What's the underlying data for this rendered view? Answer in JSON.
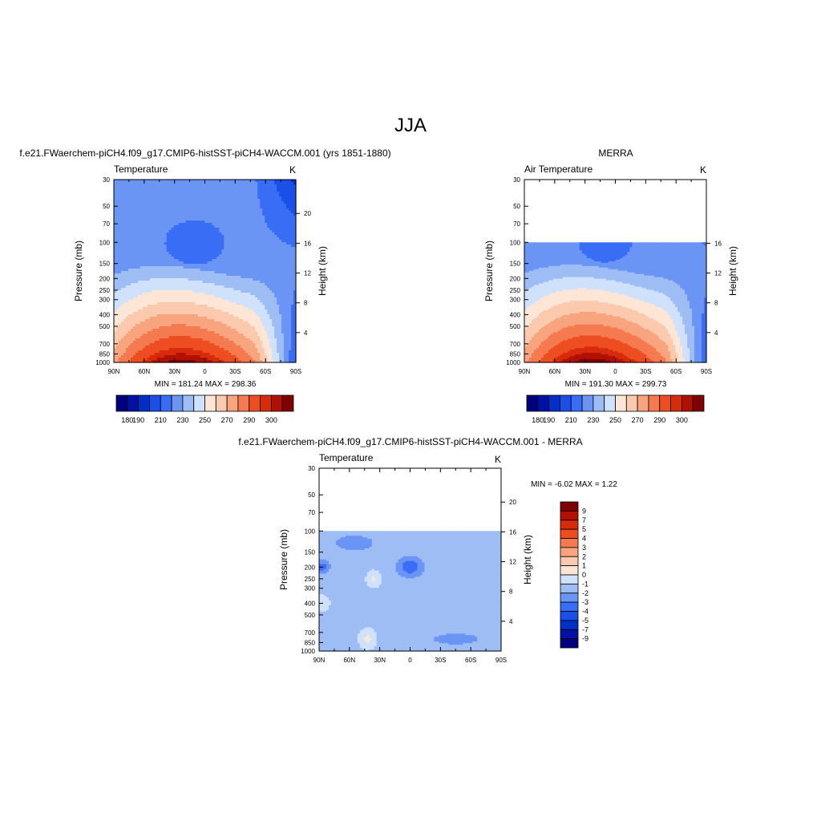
{
  "figure": {
    "title": "JJA"
  },
  "chart_data": [
    {
      "type": "heatmap",
      "id": "model",
      "title": "f.e21.FWaerchem-piCH4.f09_g17.CMIP6-histSST-piCH4-WACCM.001 (yrs 1851-1880)",
      "left_label": "Temperature",
      "units": "K",
      "xlabel": "",
      "ylabel": "Pressure (mb)",
      "ylabel_right": "Height (km)",
      "x_ticks": [
        "90N",
        "60N",
        "30N",
        "0",
        "30S",
        "60S",
        "90S"
      ],
      "x_values": [
        90,
        60,
        30,
        0,
        -30,
        -60,
        -90
      ],
      "pressure_ticks": [
        30,
        50,
        70,
        100,
        150,
        200,
        250,
        300,
        400,
        500,
        700,
        850,
        1000
      ],
      "height_ticks": [
        4,
        8,
        12,
        16,
        20
      ],
      "ylim": [
        1000,
        30
      ],
      "data_pressure_top": 30,
      "minmax": "MIN = 181.24  MAX = 298.36",
      "colorbar": {
        "levels": [
          180,
          190,
          210,
          230,
          250,
          270,
          290,
          300
        ],
        "tick_labels": [
          "180",
          "190",
          "210",
          "230",
          "250",
          "270",
          "290",
          "300"
        ],
        "colors": [
          "#00007f",
          "#0012a6",
          "#0030c8",
          "#1a4fe8",
          "#3a6df5",
          "#6a95f5",
          "#9ebdf5",
          "#cfe1fb",
          "#fde6d6",
          "#fbc9ad",
          "#f8a47f",
          "#f57a50",
          "#ee4d22",
          "#d82b0b",
          "#b31004",
          "#7f0000"
        ]
      }
    },
    {
      "type": "heatmap",
      "id": "obs",
      "title": "MERRA",
      "left_label": "Air Temperature",
      "units": "K",
      "xlabel": "",
      "ylabel": "Pressure (mb)",
      "ylabel_right": "Height (km)",
      "x_ticks": [
        "90N",
        "60N",
        "30N",
        "0",
        "30S",
        "60S",
        "90S"
      ],
      "x_values": [
        90,
        60,
        30,
        0,
        -30,
        -60,
        -90
      ],
      "pressure_ticks": [
        30,
        50,
        70,
        100,
        150,
        200,
        250,
        300,
        400,
        500,
        700,
        850,
        1000
      ],
      "height_ticks": [
        4,
        8,
        12,
        16
      ],
      "ylim": [
        1000,
        30
      ],
      "data_pressure_top": 100,
      "minmax": "MIN = 191.30  MAX = 299.73",
      "colorbar": {
        "levels": [
          180,
          190,
          210,
          230,
          250,
          270,
          290,
          300
        ],
        "tick_labels": [
          "180",
          "190",
          "210",
          "230",
          "250",
          "270",
          "290",
          "300"
        ],
        "colors": [
          "#00007f",
          "#0012a6",
          "#0030c8",
          "#1a4fe8",
          "#3a6df5",
          "#6a95f5",
          "#9ebdf5",
          "#cfe1fb",
          "#fde6d6",
          "#fbc9ad",
          "#f8a47f",
          "#f57a50",
          "#ee4d22",
          "#d82b0b",
          "#b31004",
          "#7f0000"
        ]
      }
    },
    {
      "type": "heatmap",
      "id": "diff",
      "title": "f.e21.FWaerchem-piCH4.f09_g17.CMIP6-histSST-piCH4-WACCM.001 - MERRA",
      "left_label": "Temperature",
      "units": "K",
      "xlabel": "",
      "ylabel": "Pressure (mb)",
      "ylabel_right": "Height (km)",
      "x_ticks": [
        "90N",
        "60N",
        "30N",
        "0",
        "30S",
        "60S",
        "90S"
      ],
      "x_values": [
        90,
        60,
        30,
        0,
        -30,
        -60,
        -90
      ],
      "pressure_ticks": [
        30,
        50,
        70,
        100,
        150,
        200,
        250,
        300,
        400,
        500,
        700,
        850,
        1000
      ],
      "height_ticks": [
        4,
        8,
        12,
        16,
        20
      ],
      "ylim": [
        1000,
        30
      ],
      "data_pressure_top": 100,
      "minmax": "MIN =  -6.02  MAX =   1.22",
      "colorbar": {
        "levels": [
          9,
          7,
          5,
          4,
          3,
          2,
          1,
          0,
          -1,
          -2,
          -3,
          -4,
          -5,
          -7,
          -9
        ],
        "tick_labels": [
          "9",
          "7",
          "5",
          "4",
          "3",
          "2",
          "1",
          "0",
          "-1",
          "-2",
          "-3",
          "-4",
          "-5",
          "-7",
          "-9"
        ],
        "colors": [
          "#7f0000",
          "#b31004",
          "#d82b0b",
          "#ee4d22",
          "#f57a50",
          "#f8a47f",
          "#fbc9ad",
          "#fde6d6",
          "#cfe1fb",
          "#9ebdf5",
          "#6a95f5",
          "#3a6df5",
          "#1a4fe8",
          "#0030c8",
          "#0012a6",
          "#00007f"
        ]
      }
    }
  ]
}
